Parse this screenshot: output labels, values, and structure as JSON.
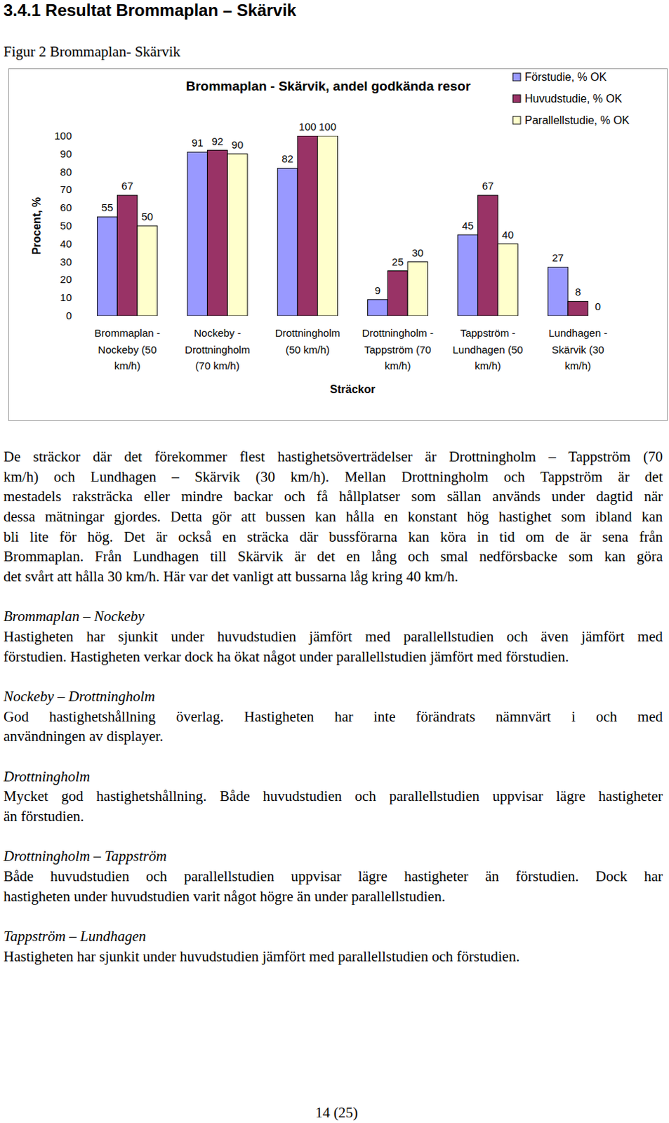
{
  "header": {
    "title": "3.4.1 Resultat Brommaplan – Skärvik"
  },
  "figure": {
    "caption": "Figur 2 Brommaplan- Skärvik"
  },
  "chart_data": {
    "type": "bar",
    "title": "Brommaplan - Skärvik, andel godkända resor",
    "x_label": "Sträckor",
    "y_label": "Procent, %",
    "categories": [
      "Brommaplan -\nNockeby (50\nkm/h)",
      "Nockeby -\nDrottningholm\n(70 km/h)",
      "Drottningholm\n(50 km/h)",
      "Drottningholm -\nTappström (70\nkm/h)",
      "Tappström -\nLundhagen (50\nkm/h)",
      "Lundhagen -\nSkärvik (30\nkm/h)"
    ],
    "series": [
      {
        "name": "Förstudie, % OK",
        "color": "#9999ff",
        "values": [
          55,
          91,
          82,
          9,
          45,
          27
        ]
      },
      {
        "name": "Huvudstudie, % OK",
        "color": "#993366",
        "values": [
          67,
          92,
          100,
          25,
          67,
          8
        ]
      },
      {
        "name": "Parallellstudie, % OK",
        "color": "#ffffcc",
        "values": [
          50,
          90,
          100,
          30,
          40,
          0
        ]
      }
    ],
    "ylim": [
      0,
      100
    ],
    "yticks": [
      0,
      10,
      20,
      30,
      40,
      50,
      60,
      70,
      80,
      90,
      100
    ],
    "grid": false,
    "data_labels": true,
    "legend": "top-right"
  },
  "intro": {
    "lines": [
      "De sträckor där det förekommer flest hastighetsöverträdelser är Drottningholm – Tappström (70",
      "km/h) och Lundhagen – Skärvik (30 km/h). Mellan Drottningholm och Tappström är det",
      "mestadels raksträcka eller mindre backar och få hållplatser som sällan används under dagtid när",
      "dessa mätningar gjordes. Detta gör att bussen kan hålla en konstant hög hastighet som ibland kan",
      "bli lite för hög. Det är också en sträcka där bussförarna kan köra in tid om de är sena från",
      "Brommaplan. Från Lundhagen till Skärvik är det en lång och smal nedförsbacke som kan göra",
      "det svårt att hålla 30 km/h. Här var det vanligt att bussarna låg kring 40 km/h."
    ]
  },
  "sections": [
    {
      "heading": "Brommaplan – Nockeby",
      "lines": [
        "Hastigheten har sjunkit under huvudstudien jämfört med parallellstudien och även jämfört med",
        "förstudien. Hastigheten verkar dock ha ökat något under parallellstudien jämfört med förstudien."
      ]
    },
    {
      "heading": "Nockeby – Drottningholm",
      "lines": [
        "God hastighetshållning överlag. Hastigheten har inte förändrats nämnvärt i och med",
        "användningen av displayer."
      ]
    },
    {
      "heading": "Drottningholm",
      "lines": [
        "Mycket god hastighetshållning. Både huvudstudien och parallellstudien uppvisar lägre hastigheter",
        "än förstudien."
      ]
    },
    {
      "heading": "Drottningholm – Tappström",
      "lines": [
        "Både huvudstudien och parallellstudien uppvisar lägre hastigheter än förstudien. Dock har",
        "hastigheten under huvudstudien varit något högre än under parallellstudien."
      ]
    },
    {
      "heading": "Tappström – Lundhagen",
      "lines": [
        "Hastigheten har sjunkit under huvudstudien jämfört med parallellstudien och förstudien."
      ]
    }
  ],
  "footer": {
    "page_number": "14 (25)"
  }
}
